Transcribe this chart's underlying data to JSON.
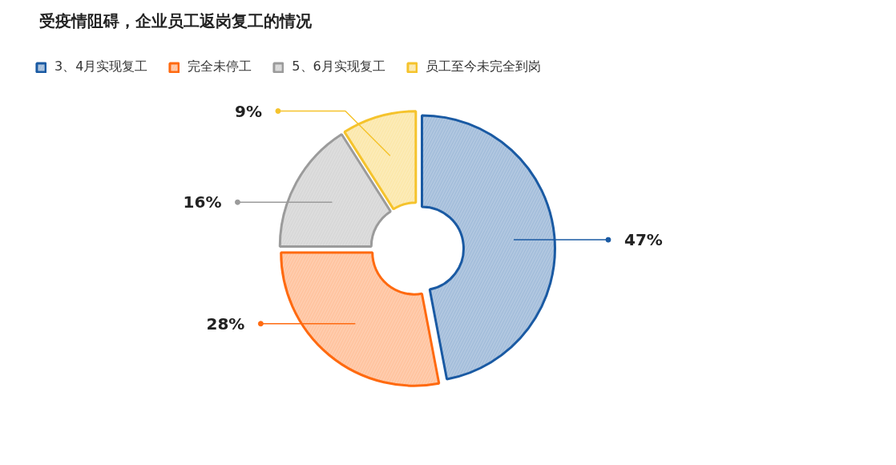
{
  "chart_data": {
    "type": "donut",
    "title": "受疫情阻碍，企业员工返岗复工的情况",
    "categories": [
      "3、4月实现复工",
      "完全未停工",
      "5、6月实现复工",
      "员工至今未完全到岗"
    ],
    "values": [
      47,
      28,
      16,
      9
    ],
    "colors": [
      "#1a5aa3",
      "#ff6a10",
      "#9b9b9b",
      "#f5c32c"
    ],
    "value_labels": [
      "47%",
      "28%",
      "16%",
      "9%"
    ],
    "legend": "top left"
  }
}
